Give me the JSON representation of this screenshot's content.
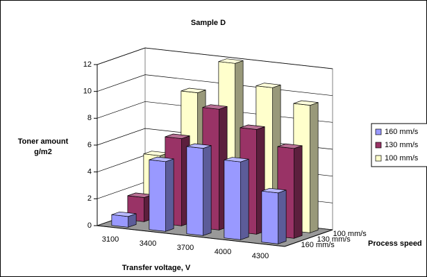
{
  "chart_data": {
    "type": "bar3d",
    "title": "Sample D",
    "x_label": "Transfer voltage, V",
    "y_label": [
      "Toner amount",
      "g/m2"
    ],
    "z_label": "Process speed",
    "categories": [
      "3100",
      "3400",
      "3700",
      "4000",
      "4300"
    ],
    "series": [
      {
        "name": "160 mm/s",
        "color": "#9999ff",
        "values": [
          0.8,
          5.2,
          6.5,
          5.8,
          3.8
        ]
      },
      {
        "name": "130 mm/s",
        "color": "#993366",
        "values": [
          1.8,
          6.5,
          9,
          7.8,
          6.7
        ]
      },
      {
        "name": "100 mm/s",
        "color": "#ffffcc",
        "values": [
          4.5,
          9.5,
          12,
          10.5,
          9.5
        ]
      }
    ],
    "ylim": [
      0,
      12
    ],
    "yticks": [
      0,
      2,
      4,
      6,
      8,
      10,
      12
    ],
    "grid": true,
    "legend": "right"
  }
}
